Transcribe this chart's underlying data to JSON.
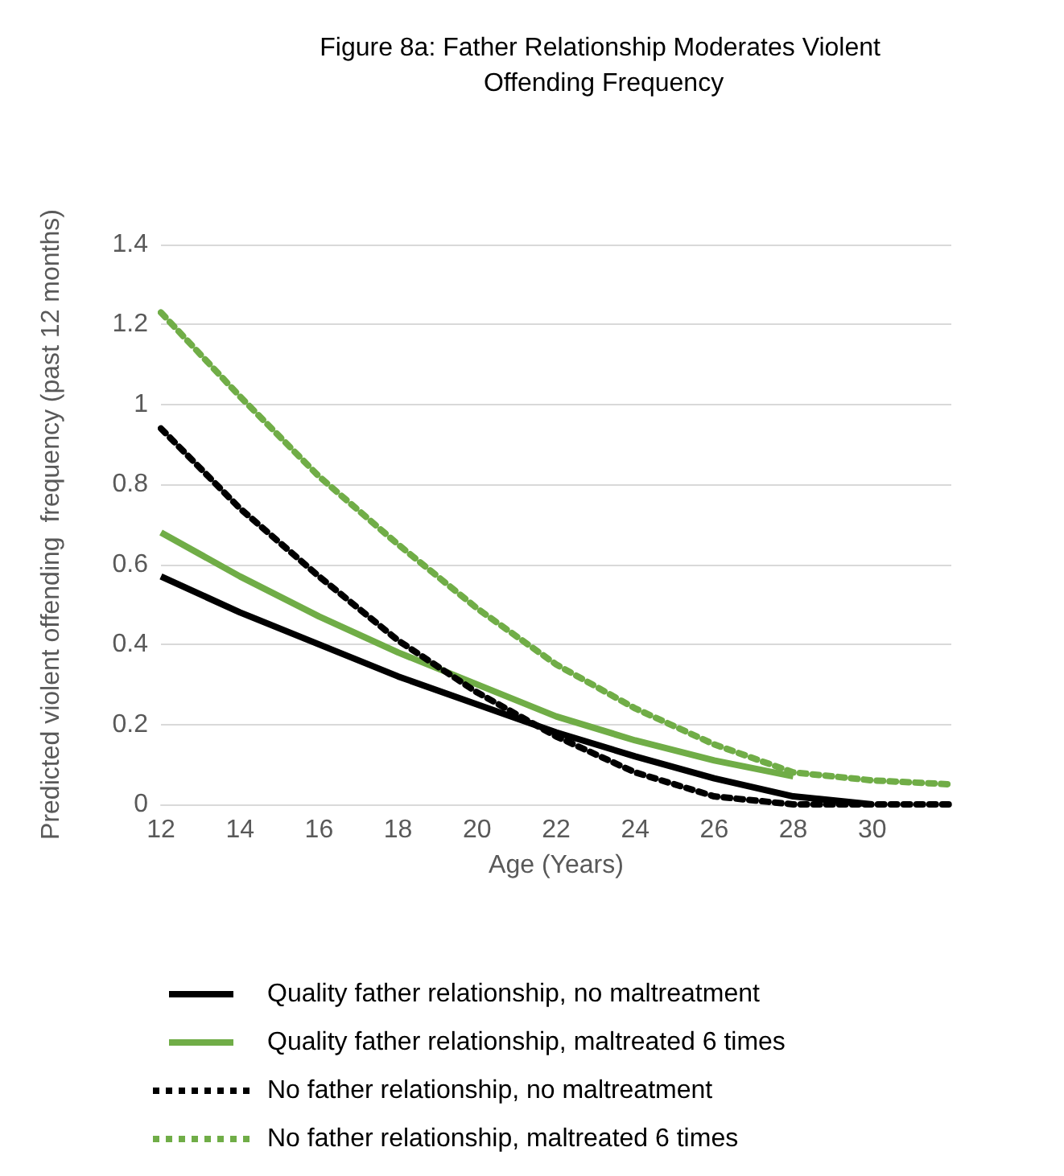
{
  "chart_data": {
    "type": "line",
    "title": "Figure 8a: Father Relationship Moderates Violent Offending Frequency",
    "xlabel": "Age (Years)",
    "ylabel": "Predicted violent offending  frequency (past 12 months)",
    "xlim": [
      12,
      32
    ],
    "xticks": [
      12,
      14,
      16,
      18,
      20,
      22,
      24,
      26,
      28,
      30
    ],
    "ylim": [
      0,
      1.4
    ],
    "yticks": [
      0,
      0.2,
      0.4,
      0.6,
      0.8,
      1,
      1.2,
      1.4
    ],
    "grid": "y",
    "legend": "bottom",
    "marker": "none",
    "series": [
      {
        "name": "Quality father relationship, no maltreatment",
        "color": "#000000",
        "line_style": "solid",
        "x": [
          12,
          14,
          16,
          18,
          20,
          22,
          24,
          26,
          28,
          30
        ],
        "values": [
          0.57,
          0.48,
          0.4,
          0.32,
          0.25,
          0.18,
          0.12,
          0.065,
          0.02,
          0
        ]
      },
      {
        "name": "Quality father relationship, maltreated 6 times",
        "color": "#70ad47",
        "line_style": "solid",
        "x": [
          12,
          14,
          16,
          18,
          20,
          22,
          24,
          26,
          28
        ],
        "values": [
          0.68,
          0.57,
          0.47,
          0.38,
          0.3,
          0.22,
          0.16,
          0.11,
          0.07
        ]
      },
      {
        "name": "No father relationship, no maltreatment",
        "color": "#000000",
        "line_style": "dotted",
        "x": [
          12,
          14,
          16,
          18,
          20,
          22,
          24,
          26,
          28,
          30,
          32
        ],
        "values": [
          0.94,
          0.74,
          0.57,
          0.41,
          0.28,
          0.17,
          0.08,
          0.02,
          0,
          0,
          0
        ]
      },
      {
        "name": "No father relationship, maltreated 6 times",
        "color": "#70ad47",
        "line_style": "dotted",
        "x": [
          12,
          14,
          16,
          18,
          20,
          22,
          24,
          26,
          28,
          30,
          32
        ],
        "values": [
          1.23,
          1.02,
          0.82,
          0.65,
          0.49,
          0.35,
          0.24,
          0.15,
          0.08,
          0.06,
          0.05
        ]
      }
    ]
  }
}
